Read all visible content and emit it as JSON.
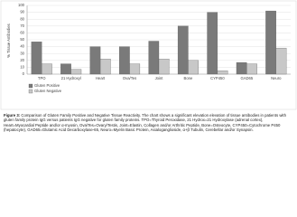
{
  "chart_data": {
    "type": "bar",
    "y_label": "% Tissue Antibodies",
    "categories": [
      "TPO",
      "21 Hydroxyl",
      "Heart",
      "Ova/Tes",
      "Joint",
      "Bone",
      "CYP450",
      "GAD65",
      "Neuro"
    ],
    "series": [
      {
        "name": "Gluten Positive",
        "color": "#7a7a7a",
        "values": [
          47,
          15,
          40,
          40,
          48,
          70,
          90,
          17,
          92
        ]
      },
      {
        "name": "Gluten Negative",
        "color": "#c8c8c8",
        "values": [
          15,
          7,
          22,
          15,
          22,
          20,
          5,
          15,
          38
        ]
      }
    ],
    "ylim": [
      0,
      100
    ],
    "yticks": [
      0,
      10,
      20,
      30,
      40,
      50,
      60,
      70,
      80,
      90,
      100
    ],
    "grid": true,
    "legend": "bottom-left"
  },
  "caption": {
    "label": "Figure 3:",
    "text": "Comparison of Gluten Family Positive and Negative Tissue Reactivity. The chart shows a significant elevation elevation of tissue antibodies in patients with gluten family protein IgG versus patients IgG negative for gluten family proteins. TPO=Thyroid Peroxidase, 21 Hydrox=21 Hydroxylase (adrenal cortex), Heart=Myocardial Peptide and/or α-myosin, Ova/Tes=Ovary/Testis, Joint=Elastin, Collagen and/or Arthritic Peptide, Bone=Osteocyte, CYP450=Cytochrome P450 (hepatocyte), GAD65=Glutamic Acid Decarboxylase-65, Neuro=Myelin Basic Protein, Asialoganglioside, α+β Tubulin, Cerebellar and/or Synapsin."
  }
}
